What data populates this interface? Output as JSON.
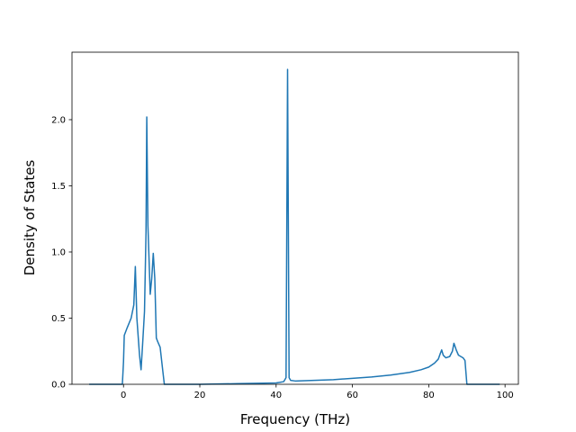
{
  "chart_data": {
    "type": "line",
    "title": "",
    "xlabel": "Frequency (THz)",
    "ylabel": "Density of States",
    "xlim": [
      -13.5,
      103.5
    ],
    "ylim": [
      0,
      2.51
    ],
    "xticks": [
      0,
      20,
      40,
      60,
      80,
      100
    ],
    "yticks": [
      0.0,
      0.5,
      1.0,
      1.5,
      2.0
    ],
    "xtick_labels": [
      "0",
      "20",
      "40",
      "60",
      "80",
      "100"
    ],
    "ytick_labels": [
      "0.0",
      "0.5",
      "1.0",
      "1.5",
      "2.0"
    ],
    "grid": false,
    "legend": "none",
    "series": [
      {
        "color": "#1f77b4",
        "x": [
          -9.0,
          -0.3,
          0.0,
          0.2,
          1.0,
          2.0,
          2.7,
          3.1,
          3.5,
          4.2,
          4.6,
          5.0,
          5.5,
          5.9,
          6.1,
          6.4,
          7.0,
          7.4,
          7.8,
          8.2,
          8.6,
          9.0,
          9.6,
          10.3,
          10.7,
          12.0,
          20.0,
          30.0,
          40.0,
          42.0,
          42.6,
          43.0,
          43.4,
          43.8,
          45.0,
          50.0,
          55.0,
          60.0,
          65.0,
          70.0,
          75.0,
          78.0,
          80.0,
          81.5,
          82.5,
          83.0,
          83.4,
          83.8,
          84.5,
          85.5,
          86.2,
          86.6,
          87.2,
          87.8,
          89.0,
          89.5,
          90.0,
          98.6
        ],
        "y": [
          0.0,
          0.0,
          0.17,
          0.37,
          0.43,
          0.5,
          0.6,
          0.89,
          0.5,
          0.22,
          0.11,
          0.3,
          0.55,
          1.15,
          2.02,
          1.2,
          0.68,
          0.8,
          0.99,
          0.8,
          0.35,
          0.32,
          0.28,
          0.1,
          0.0,
          0.0,
          0.0,
          0.005,
          0.01,
          0.02,
          0.05,
          2.38,
          0.05,
          0.03,
          0.025,
          0.03,
          0.035,
          0.045,
          0.055,
          0.07,
          0.09,
          0.11,
          0.13,
          0.16,
          0.19,
          0.23,
          0.26,
          0.22,
          0.2,
          0.21,
          0.25,
          0.31,
          0.26,
          0.22,
          0.2,
          0.18,
          0.0,
          0.0
        ]
      }
    ]
  }
}
